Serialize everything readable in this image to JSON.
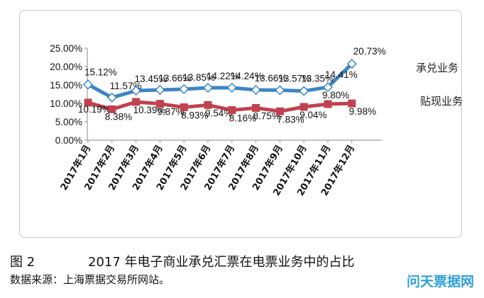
{
  "chart_data": {
    "type": "line",
    "categories": [
      "2017年1月",
      "2017年2月",
      "2017年3月",
      "2017年4月",
      "2017年5月",
      "2017年6月",
      "2017年7月",
      "2017年8月",
      "2017年9月",
      "2017年10月",
      "2017年11月",
      "2017年12月"
    ],
    "series": [
      {
        "name": "承兑业务",
        "color": "#3b86c6",
        "marker": "diamond",
        "values": [
          15.12,
          11.57,
          13.45,
          13.66,
          13.85,
          14.22,
          14.24,
          13.66,
          13.57,
          13.35,
          14.41,
          20.73
        ],
        "labels": [
          "15.12%",
          "11.57%",
          "13.45%",
          "13.66%",
          "13.85%",
          "14.22%",
          "14.24%",
          "13.66%",
          "13.57%",
          "13.35%",
          "14.41%",
          "20.73%"
        ]
      },
      {
        "name": "贴现业务",
        "color": "#c0424f",
        "marker": "square",
        "values": [
          10.19,
          8.38,
          10.39,
          9.87,
          8.93,
          9.54,
          8.16,
          8.75,
          7.83,
          9.04,
          9.8,
          9.98
        ],
        "labels": [
          "10.19%",
          "8.38%",
          "10.39%",
          "9.87%",
          "8.93%",
          "9.54%",
          "8.16%",
          "8.75%",
          "7.83%",
          "9.04%",
          "9.80%",
          "9.98%"
        ]
      }
    ],
    "y_ticks": [
      "0.00%",
      "5.00%",
      "10.00%",
      "15.00%",
      "20.00%",
      "25.00%"
    ],
    "ylim": [
      0,
      25
    ],
    "grid": false,
    "legend_placement": "right"
  },
  "caption": {
    "figure_number": "图 2",
    "title": "2017 年电子商业承兑汇票在电票业务中的占比"
  },
  "source_note": "数据来源：上海票据交易所网站。",
  "watermark": "问天票据网"
}
